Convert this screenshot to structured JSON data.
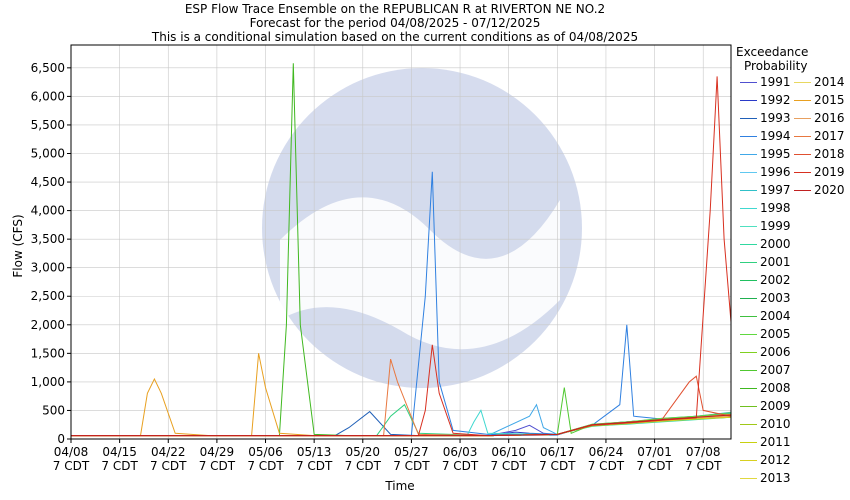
{
  "chart_data": {
    "type": "line",
    "title": "ESP Flow Trace Ensemble on the REPUBLICAN R at RIVERTON NE NO.2",
    "subtitle": "Forecast for the period 04/08/2025 - 07/12/2025",
    "subtitle2": "This is a conditional simulation based on the current conditions as of 04/08/2025",
    "xlabel": "Time",
    "ylabel": "Flow (CFS)",
    "ylim": [
      0,
      6900
    ],
    "yticks": [
      0,
      500,
      1000,
      1500,
      2000,
      2500,
      3000,
      3500,
      4000,
      4500,
      5000,
      5500,
      6000,
      6500
    ],
    "ytick_labels": [
      "0",
      "500",
      "1,000",
      "1,500",
      "2,000",
      "2,500",
      "3,000",
      "3,500",
      "4,000",
      "4,500",
      "5,000",
      "5,500",
      "6,000",
      "6,500"
    ],
    "xlim_day": [
      0,
      95
    ],
    "xticks_day": [
      0,
      7,
      14,
      21,
      28,
      35,
      42,
      49,
      56,
      63,
      70,
      77,
      84,
      91
    ],
    "xtick_labels": [
      "04/08",
      "04/15",
      "04/22",
      "04/29",
      "05/06",
      "05/13",
      "05/20",
      "05/27",
      "06/03",
      "06/10",
      "06/17",
      "06/24",
      "07/01",
      "07/08"
    ],
    "xtick_sublabel": "7 CDT",
    "grid": true,
    "legend_title_line1": "Exceedance",
    "legend_title_line2": "Probability",
    "legend_position": "right",
    "watermark": "NOAA U.S. DEPARTMENT OF COMMERCE NATIONAL OCEANIC AND ATMOSPHERIC ADMINISTRATION",
    "series": [
      {
        "name": "1991",
        "color": "#5050d0",
        "x": [
          0,
          10,
          20,
          30,
          40,
          50,
          60,
          64,
          66,
          68,
          70,
          75,
          80,
          85,
          90,
          95
        ],
        "y": [
          60,
          60,
          60,
          60,
          60,
          60,
          60,
          150,
          240,
          100,
          80,
          250,
          300,
          350,
          400,
          450
        ]
      },
      {
        "name": "1992",
        "color": "#2a3ac8",
        "x": [
          0,
          10,
          20,
          30,
          40,
          50,
          60,
          64,
          66,
          70,
          75,
          80,
          85,
          90,
          95
        ],
        "y": [
          60,
          60,
          60,
          60,
          60,
          60,
          60,
          120,
          100,
          80,
          240,
          280,
          340,
          380,
          420
        ]
      },
      {
        "name": "1993",
        "color": "#2060b8",
        "x": [
          0,
          10,
          20,
          30,
          38,
          40,
          43,
          46,
          50,
          60,
          70,
          75,
          80,
          85,
          90,
          95
        ],
        "y": [
          60,
          60,
          60,
          60,
          60,
          200,
          480,
          80,
          60,
          60,
          70,
          250,
          300,
          350,
          400,
          430
        ]
      },
      {
        "name": "1994",
        "color": "#3080e0",
        "x": [
          0,
          10,
          20,
          30,
          40,
          49,
          51,
          52,
          53,
          55,
          60,
          70,
          75,
          79,
          80,
          81,
          85,
          90,
          95
        ],
        "y": [
          60,
          60,
          60,
          60,
          60,
          60,
          2500,
          4680,
          1000,
          150,
          80,
          80,
          240,
          600,
          2000,
          400,
          350,
          390,
          450
        ]
      },
      {
        "name": "1995",
        "color": "#40a8e8",
        "x": [
          0,
          10,
          20,
          30,
          40,
          50,
          60,
          66,
          67,
          68,
          70,
          75,
          80,
          85,
          90,
          95
        ],
        "y": [
          60,
          60,
          60,
          60,
          60,
          60,
          60,
          400,
          600,
          200,
          80,
          250,
          290,
          360,
          400,
          470
        ]
      },
      {
        "name": "1996",
        "color": "#60c8f0",
        "x": [
          0,
          10,
          20,
          30,
          40,
          50,
          60,
          70,
          75,
          80,
          85,
          90,
          95
        ],
        "y": [
          60,
          60,
          60,
          60,
          60,
          60,
          60,
          80,
          240,
          280,
          330,
          370,
          410
        ]
      },
      {
        "name": "1997",
        "color": "#30c0c8",
        "x": [
          0,
          10,
          20,
          30,
          40,
          50,
          60,
          70,
          75,
          80,
          85,
          90,
          95
        ],
        "y": [
          60,
          60,
          60,
          60,
          60,
          60,
          60,
          80,
          260,
          300,
          350,
          380,
          440
        ]
      },
      {
        "name": "1998",
        "color": "#40d8d0",
        "x": [
          0,
          10,
          20,
          30,
          40,
          50,
          57,
          58,
          59,
          60,
          70,
          75,
          80,
          85,
          90,
          95
        ],
        "y": [
          60,
          60,
          60,
          60,
          60,
          60,
          60,
          300,
          500,
          100,
          80,
          240,
          280,
          330,
          360,
          400
        ]
      },
      {
        "name": "1999",
        "color": "#50e0c0",
        "x": [
          0,
          10,
          20,
          30,
          40,
          50,
          60,
          70,
          75,
          80,
          85,
          90,
          95
        ],
        "y": [
          60,
          60,
          60,
          60,
          60,
          60,
          60,
          80,
          220,
          270,
          320,
          360,
          390
        ]
      },
      {
        "name": "2000",
        "color": "#30d8a0",
        "x": [
          0,
          10,
          20,
          30,
          40,
          50,
          60,
          70,
          75,
          80,
          85,
          90,
          95
        ],
        "y": [
          60,
          60,
          60,
          60,
          60,
          60,
          60,
          80,
          230,
          260,
          300,
          340,
          380
        ]
      },
      {
        "name": "2001",
        "color": "#30d080",
        "x": [
          0,
          10,
          20,
          30,
          40,
          44,
          46,
          48,
          50,
          60,
          70,
          75,
          80,
          85,
          90,
          95
        ],
        "y": [
          60,
          60,
          60,
          60,
          60,
          60,
          400,
          600,
          100,
          60,
          80,
          250,
          300,
          340,
          370,
          420
        ]
      },
      {
        "name": "2002",
        "color": "#20c060",
        "x": [
          0,
          10,
          20,
          30,
          40,
          50,
          60,
          70,
          75,
          80,
          85,
          90,
          95
        ],
        "y": [
          60,
          60,
          60,
          60,
          60,
          60,
          60,
          80,
          240,
          280,
          320,
          360,
          400
        ]
      },
      {
        "name": "2003",
        "color": "#20b050",
        "x": [
          0,
          10,
          20,
          30,
          40,
          50,
          60,
          70,
          75,
          80,
          85,
          90,
          95
        ],
        "y": [
          60,
          60,
          60,
          60,
          60,
          60,
          60,
          80,
          250,
          290,
          340,
          380,
          430
        ]
      },
      {
        "name": "2004",
        "color": "#40c040",
        "x": [
          0,
          10,
          20,
          30,
          40,
          50,
          60,
          70,
          75,
          80,
          85,
          90,
          95
        ],
        "y": [
          60,
          60,
          60,
          60,
          60,
          60,
          60,
          80,
          230,
          270,
          320,
          350,
          380
        ]
      },
      {
        "name": "2005",
        "color": "#60d840",
        "x": [
          0,
          10,
          20,
          30,
          40,
          50,
          60,
          70,
          75,
          80,
          85,
          90,
          95
        ],
        "y": [
          60,
          60,
          60,
          60,
          60,
          60,
          60,
          80,
          260,
          300,
          360,
          400,
          460
        ]
      },
      {
        "name": "2006",
        "color": "#80d020",
        "x": [
          0,
          10,
          20,
          30,
          40,
          50,
          60,
          70,
          75,
          80,
          85,
          90,
          95
        ],
        "y": [
          60,
          60,
          60,
          60,
          60,
          60,
          60,
          80,
          240,
          280,
          330,
          370,
          400
        ]
      },
      {
        "name": "2007",
        "color": "#50c830",
        "x": [
          0,
          10,
          20,
          30,
          40,
          50,
          60,
          70,
          71,
          72,
          75,
          80,
          85,
          90,
          95
        ],
        "y": [
          60,
          60,
          60,
          60,
          60,
          60,
          60,
          80,
          900,
          100,
          250,
          290,
          340,
          380,
          420
        ]
      },
      {
        "name": "2008",
        "color": "#40b820",
        "x": [
          0,
          10,
          20,
          30,
          31,
          32,
          33,
          35,
          40,
          50,
          60,
          70,
          75,
          80,
          85,
          90,
          95
        ],
        "y": [
          60,
          60,
          60,
          60,
          2000,
          6580,
          2000,
          80,
          60,
          60,
          60,
          80,
          240,
          280,
          330,
          370,
          410
        ]
      },
      {
        "name": "2009",
        "color": "#70c020",
        "x": [
          0,
          10,
          20,
          30,
          40,
          50,
          60,
          70,
          75,
          80,
          85,
          90,
          95
        ],
        "y": [
          60,
          60,
          60,
          60,
          60,
          60,
          60,
          80,
          250,
          290,
          340,
          380,
          420
        ]
      },
      {
        "name": "2010",
        "color": "#a0c818",
        "x": [
          0,
          10,
          20,
          30,
          40,
          50,
          60,
          70,
          75,
          80,
          85,
          90,
          95
        ],
        "y": [
          60,
          60,
          60,
          60,
          60,
          60,
          60,
          80,
          230,
          270,
          320,
          360,
          390
        ]
      },
      {
        "name": "2011",
        "color": "#c8d010",
        "x": [
          0,
          10,
          20,
          30,
          40,
          50,
          60,
          70,
          75,
          80,
          85,
          90,
          95
        ],
        "y": [
          60,
          60,
          60,
          60,
          60,
          60,
          60,
          80,
          250,
          280,
          330,
          370,
          410
        ]
      },
      {
        "name": "2012",
        "color": "#d8d020",
        "x": [
          0,
          10,
          20,
          30,
          40,
          50,
          60,
          70,
          75,
          80,
          85,
          90,
          95
        ],
        "y": [
          60,
          60,
          60,
          60,
          60,
          60,
          60,
          80,
          240,
          270,
          310,
          350,
          380
        ]
      },
      {
        "name": "2013",
        "color": "#e0d840",
        "x": [
          0,
          10,
          20,
          30,
          40,
          50,
          60,
          70,
          75,
          80,
          85,
          90,
          95
        ],
        "y": [
          60,
          60,
          60,
          60,
          60,
          60,
          60,
          80,
          250,
          290,
          340,
          380,
          430
        ]
      },
      {
        "name": "2014",
        "color": "#e8d860",
        "x": [
          0,
          10,
          20,
          30,
          40,
          50,
          60,
          70,
          75,
          80,
          85,
          90,
          95
        ],
        "y": [
          60,
          60,
          60,
          60,
          60,
          60,
          60,
          80,
          240,
          280,
          330,
          370,
          410
        ]
      },
      {
        "name": "2015",
        "color": "#e8a020",
        "x": [
          0,
          5,
          10,
          11,
          12,
          13,
          15,
          20,
          26,
          27,
          28,
          30,
          35,
          40,
          50,
          60,
          70,
          75,
          80,
          85,
          90,
          95
        ],
        "y": [
          60,
          60,
          60,
          800,
          1050,
          800,
          100,
          60,
          60,
          1500,
          900,
          100,
          60,
          60,
          60,
          60,
          80,
          250,
          290,
          340,
          380,
          430
        ]
      },
      {
        "name": "2016",
        "color": "#e8a060",
        "x": [
          0,
          10,
          20,
          30,
          40,
          50,
          60,
          70,
          75,
          80,
          85,
          90,
          95
        ],
        "y": [
          60,
          60,
          60,
          60,
          60,
          60,
          60,
          80,
          240,
          280,
          330,
          370,
          400
        ]
      },
      {
        "name": "2017",
        "color": "#e87840",
        "x": [
          0,
          10,
          20,
          30,
          40,
          45,
          46,
          47,
          50,
          60,
          70,
          75,
          80,
          85,
          90,
          95
        ],
        "y": [
          60,
          60,
          60,
          60,
          60,
          60,
          1400,
          1000,
          80,
          60,
          80,
          250,
          290,
          340,
          380,
          420
        ]
      },
      {
        "name": "2018",
        "color": "#e05030",
        "x": [
          0,
          10,
          20,
          30,
          40,
          50,
          60,
          70,
          75,
          80,
          85,
          89,
          90,
          91,
          95
        ],
        "y": [
          60,
          60,
          60,
          60,
          60,
          60,
          60,
          80,
          240,
          280,
          330,
          1000,
          1100,
          500,
          400
        ]
      },
      {
        "name": "2019",
        "color": "#d83020",
        "x": [
          0,
          10,
          20,
          30,
          40,
          50,
          51,
          52,
          53,
          55,
          60,
          70,
          75,
          80,
          85,
          90,
          92,
          93,
          94,
          95
        ],
        "y": [
          60,
          60,
          60,
          60,
          60,
          60,
          500,
          1650,
          800,
          100,
          60,
          80,
          240,
          280,
          330,
          370,
          4000,
          6350,
          3500,
          2050
        ]
      },
      {
        "name": "2020",
        "color": "#c02020",
        "x": [
          0,
          10,
          20,
          30,
          40,
          50,
          60,
          70,
          75,
          80,
          85,
          90,
          95
        ],
        "y": [
          60,
          60,
          60,
          60,
          60,
          60,
          60,
          80,
          250,
          290,
          340,
          380,
          420
        ]
      }
    ]
  }
}
